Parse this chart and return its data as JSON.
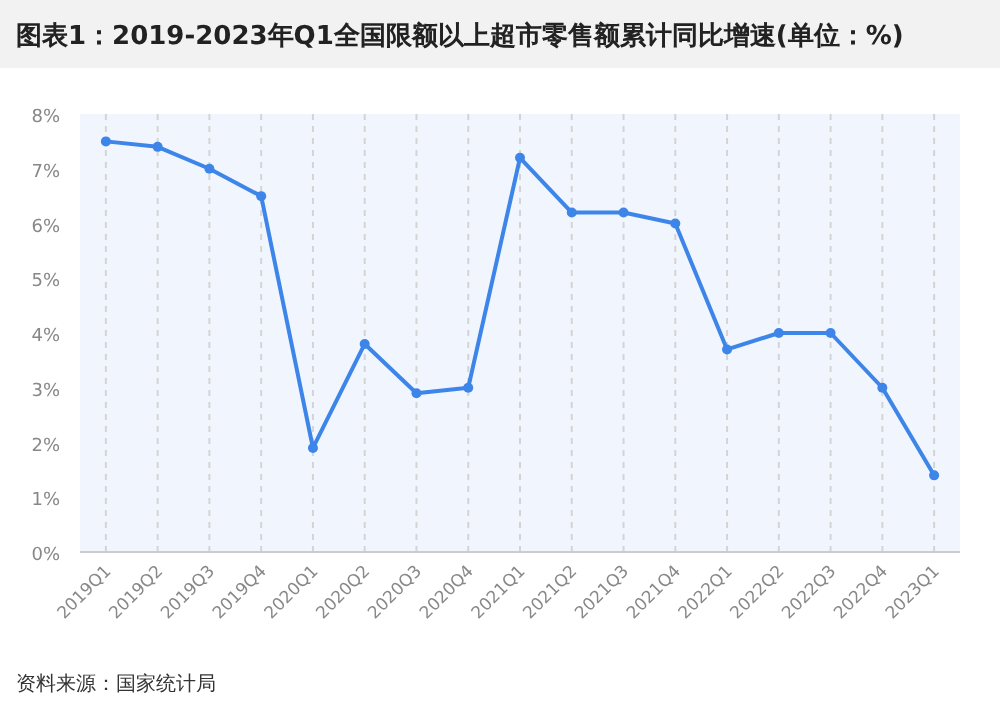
{
  "chart_data": {
    "type": "line",
    "title": "图表1：2019-2023年Q1全国限额以上超市零售额累计同比增速(单位：%)",
    "categories": [
      "2019Q1",
      "2019Q2",
      "2019Q3",
      "2019Q4",
      "2020Q1",
      "2020Q2",
      "2020Q3",
      "2020Q4",
      "2021Q1",
      "2021Q2",
      "2021Q3",
      "2021Q4",
      "2022Q1",
      "2022Q2",
      "2022Q3",
      "2022Q4",
      "2023Q1"
    ],
    "series": [
      {
        "color": "#3d85e8",
        "values": [
          7.5,
          7.4,
          7.0,
          6.5,
          1.9,
          3.8,
          2.9,
          3.0,
          7.2,
          6.2,
          6.2,
          6.0,
          3.7,
          4.0,
          4.0,
          3.0,
          1.4
        ]
      }
    ],
    "ylim": [
      0,
      8
    ],
    "yticks": [
      {
        "value": 0,
        "label": "0%"
      },
      {
        "value": 1,
        "label": "1%"
      },
      {
        "value": 2,
        "label": "2%"
      },
      {
        "value": 3,
        "label": "3%"
      },
      {
        "value": 4,
        "label": "4%"
      },
      {
        "value": 5,
        "label": "5%"
      },
      {
        "value": 6,
        "label": "6%"
      },
      {
        "value": 7,
        "label": "7%"
      },
      {
        "value": 8,
        "label": "8%"
      }
    ],
    "grid": "x",
    "marker": "circle",
    "line_style": "solid",
    "annotations": [
      "资料来源：国家统计局"
    ]
  }
}
